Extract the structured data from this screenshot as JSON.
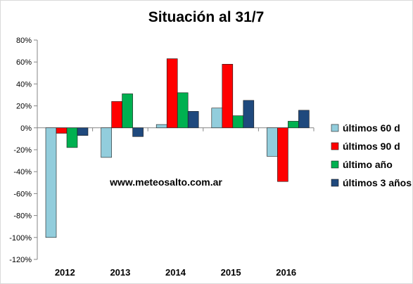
{
  "chart_data": {
    "type": "bar",
    "title": "Situación al 31/7",
    "xlabel": "",
    "ylabel": "",
    "categories": [
      "2012",
      "2013",
      "2014",
      "2015",
      "2016"
    ],
    "ylim": [
      -120,
      80
    ],
    "yticks": [
      80,
      60,
      40,
      20,
      0,
      -20,
      -40,
      -60,
      -80,
      -100,
      -120
    ],
    "ytick_labels": [
      "80%",
      "60%",
      "40%",
      "20%",
      "0%",
      "-20%",
      "-40%",
      "-60%",
      "-80%",
      "-100%",
      "-120%"
    ],
    "grid": false,
    "legend_position": "right",
    "annotation": "www.meteosalto.com.ar",
    "series": [
      {
        "name": "últimos 60 d",
        "color": "#92CDDC",
        "values": [
          -100,
          -27,
          3,
          18,
          -26
        ]
      },
      {
        "name": "últimos 90 d",
        "color": "#FF0000",
        "values": [
          -5,
          24,
          63,
          58,
          -49
        ]
      },
      {
        "name": "último año",
        "color": "#00B050",
        "values": [
          -18,
          31,
          32,
          11,
          6
        ]
      },
      {
        "name": "últimos 3 años",
        "color": "#1F497D",
        "values": [
          -7,
          -8,
          15,
          25,
          16
        ]
      }
    ]
  }
}
